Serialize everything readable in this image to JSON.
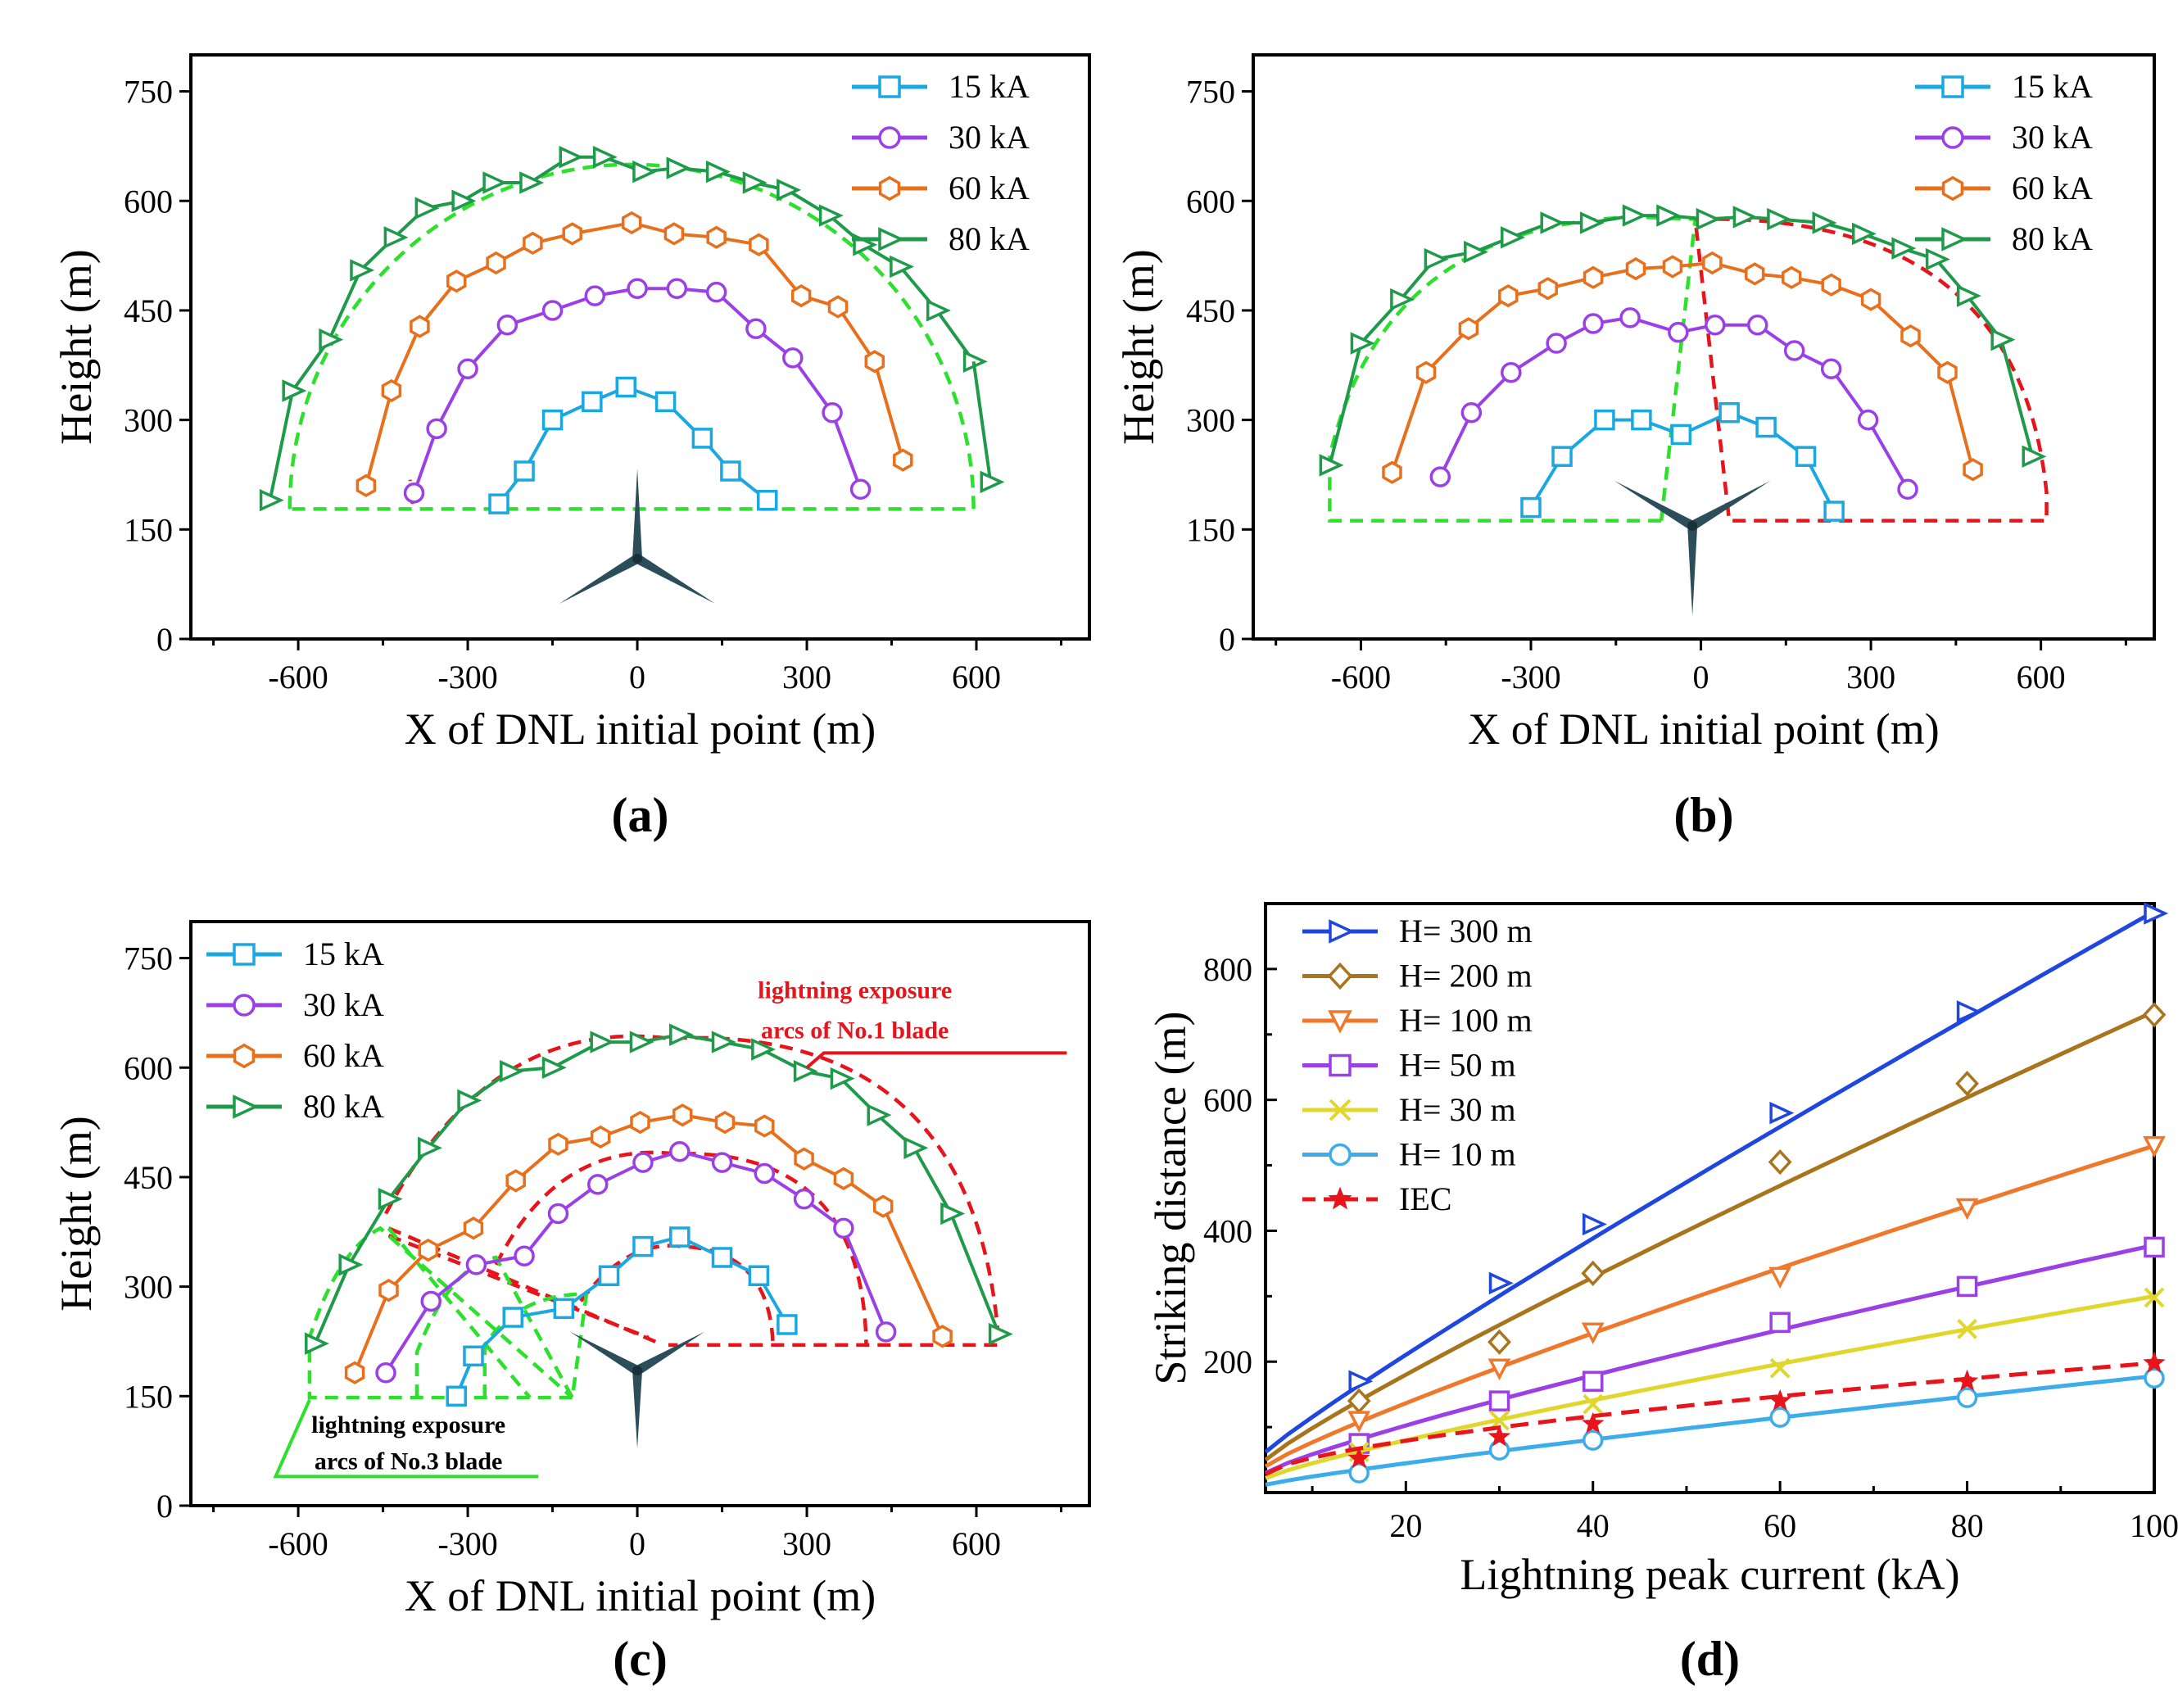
{
  "colors": {
    "c15": "#1ba7e0",
    "c30": "#9b40e6",
    "c60": "#e8701c",
    "c80": "#1f9a4a",
    "green_dash": "#2ce02c",
    "red_dash": "#e8141c",
    "turbine": "#2c4e5a",
    "h300": "#1f47e0",
    "h200": "#a8741c",
    "h100": "#f0782c",
    "h50": "#9b40e6",
    "h30": "#e0d62c",
    "h10": "#3cacea",
    "iec": "#e8141c"
  },
  "chart_data": [
    {
      "id": "a",
      "type": "line",
      "panel_label": "(a)",
      "xlabel": "X of DNL initial point (m)",
      "ylabel": "Height  (m)",
      "xlim": [
        -790,
        800
      ],
      "ylim": [
        0,
        800
      ],
      "xticks": [
        "-600",
        "-300",
        "0",
        "300",
        "600"
      ],
      "xtick_values": [
        -600,
        -300,
        0,
        300,
        600
      ],
      "yticks": [
        "0",
        "150",
        "300",
        "450",
        "600",
        "750"
      ],
      "ytick_values": [
        0,
        150,
        300,
        450,
        600,
        750
      ],
      "legend": "top-right",
      "series": [
        {
          "name": "15 kA",
          "color_key": "c15",
          "marker": "square",
          "x": [
            -245,
            -200,
            -150,
            -80,
            -20,
            50,
            115,
            165,
            230
          ],
          "y": [
            185,
            230,
            300,
            325,
            345,
            325,
            275,
            230,
            190
          ]
        },
        {
          "name": "30 kA",
          "color_key": "c30",
          "marker": "circle",
          "x": [
            -395,
            -355,
            -300,
            -230,
            -150,
            -75,
            0,
            70,
            140,
            210,
            275,
            345,
            395
          ],
          "y": [
            200,
            288,
            370,
            430,
            450,
            470,
            480,
            480,
            475,
            425,
            385,
            310,
            205
          ]
        },
        {
          "name": "60 kA",
          "color_key": "c60",
          "marker": "hexagon",
          "x": [
            -480,
            -435,
            -385,
            -320,
            -250,
            -185,
            -115,
            -10,
            65,
            140,
            215,
            290,
            355,
            420,
            470
          ],
          "y": [
            210,
            340,
            428,
            490,
            515,
            542,
            555,
            570,
            555,
            550,
            540,
            470,
            455,
            380,
            245
          ]
        },
        {
          "name": "80 kA",
          "color_key": "c80",
          "marker": "triangle-right",
          "x": [
            -650,
            -610,
            -545,
            -490,
            -430,
            -375,
            -310,
            -255,
            -190,
            -120,
            -60,
            10,
            70,
            140,
            205,
            265,
            340,
            400,
            465,
            530,
            595
          ],
          "y": [
            190,
            340,
            410,
            505,
            550,
            590,
            600,
            625,
            625,
            660,
            660,
            640,
            645,
            640,
            625,
            615,
            580,
            540,
            510,
            450,
            380
          ]
        }
      ],
      "extra_points": [
        {
          "series": "80 kA",
          "x": 625,
          "y": 215
        }
      ],
      "dashed_envelopes": [
        {
          "color_key": "green_dash",
          "path": "arc",
          "cx": -10,
          "base": 178,
          "rx": 605,
          "top": 650
        }
      ]
    },
    {
      "id": "b",
      "type": "line",
      "panel_label": "(b)",
      "xlabel": "X of DNL initial point  (m)",
      "ylabel": "Height  (m)",
      "xlim": [
        -790,
        800
      ],
      "ylim": [
        0,
        800
      ],
      "xticks": [
        "-600",
        "-300",
        "0",
        "300",
        "600"
      ],
      "xtick_values": [
        -600,
        -300,
        0,
        300,
        600
      ],
      "yticks": [
        "0",
        "150",
        "300",
        "450",
        "600",
        "750"
      ],
      "ytick_values": [
        0,
        150,
        300,
        450,
        600,
        750
      ],
      "legend": "top-right",
      "series": [
        {
          "name": "15 kA",
          "color_key": "c15",
          "marker": "square",
          "x": [
            -300,
            -245,
            -170,
            -105,
            -35,
            50,
            115,
            185,
            235
          ],
          "y": [
            180,
            250,
            300,
            300,
            280,
            310,
            290,
            250,
            175
          ]
        },
        {
          "name": "30 kA",
          "color_key": "c30",
          "marker": "circle",
          "x": [
            -460,
            -405,
            -335,
            -255,
            -190,
            -125,
            -40,
            25,
            100,
            165,
            230,
            295,
            365
          ],
          "y": [
            222,
            310,
            365,
            405,
            432,
            440,
            420,
            430,
            430,
            395,
            370,
            300,
            205
          ]
        },
        {
          "name": "60 kA",
          "color_key": "c60",
          "marker": "hexagon",
          "x": [
            -545,
            -485,
            -410,
            -340,
            -270,
            -190,
            -115,
            -50,
            20,
            95,
            160,
            230,
            300,
            370,
            435,
            480
          ],
          "y": [
            228,
            365,
            425,
            470,
            480,
            495,
            507,
            510,
            515,
            500,
            495,
            485,
            465,
            415,
            365,
            232
          ]
        },
        {
          "name": "80 kA",
          "color_key": "c80",
          "marker": "triangle-right",
          "x": [
            -655,
            -600,
            -530,
            -470,
            -400,
            -335,
            -265,
            -195,
            -120,
            -60,
            10,
            75,
            135,
            215,
            285,
            355,
            415,
            470,
            530,
            585
          ],
          "y": [
            238,
            405,
            465,
            520,
            530,
            550,
            570,
            570,
            580,
            580,
            575,
            578,
            575,
            570,
            555,
            535,
            520,
            470,
            410,
            250
          ]
        }
      ],
      "dashed_envelopes": [
        {
          "color_key": "green_dash",
          "path": "half-left",
          "cx": -110,
          "base": 162,
          "rx": 545,
          "top": 578
        },
        {
          "color_key": "red_dash",
          "path": "half-right",
          "cx": 60,
          "base": 162,
          "rx": 545,
          "top": 578
        }
      ]
    },
    {
      "id": "c",
      "type": "line",
      "panel_label": "(c)",
      "xlabel": "X of DNL initial point (m)",
      "ylabel": "Height  (m)",
      "xlim": [
        -790,
        800
      ],
      "ylim": [
        0,
        800
      ],
      "xticks": [
        "-600",
        "-300",
        "0",
        "300",
        "600"
      ],
      "xtick_values": [
        -600,
        -300,
        0,
        300,
        600
      ],
      "yticks": [
        "0",
        "150",
        "300",
        "450",
        "600",
        "750"
      ],
      "ytick_values": [
        0,
        150,
        300,
        450,
        600,
        750
      ],
      "legend": "top-left",
      "annotation_no1_line1": "lightning exposure",
      "annotation_no1_line2": "arcs of No.1 blade",
      "annotation_no3_line1": "lightning exposure",
      "annotation_no3_line2": "arcs of No.3 blade",
      "series": [
        {
          "name": "15 kA",
          "color_key": "c15",
          "marker": "square",
          "x": [
            -320,
            -290,
            -220,
            -130,
            -50,
            10,
            75,
            150,
            215,
            265
          ],
          "y": [
            150,
            205,
            258,
            270,
            315,
            355,
            368,
            340,
            315,
            248
          ]
        },
        {
          "name": "30 kA",
          "color_key": "c30",
          "marker": "circle",
          "x": [
            -445,
            -365,
            -285,
            -200,
            -140,
            -70,
            10,
            75,
            150,
            225,
            295,
            365,
            440
          ],
          "y": [
            182,
            280,
            330,
            342,
            400,
            440,
            470,
            485,
            470,
            455,
            420,
            380,
            238
          ]
        },
        {
          "name": "60 kA",
          "color_key": "c60",
          "marker": "hexagon",
          "x": [
            -500,
            -440,
            -370,
            -290,
            -215,
            -140,
            -65,
            5,
            80,
            155,
            225,
            295,
            365,
            435,
            540
          ],
          "y": [
            182,
            295,
            350,
            380,
            445,
            495,
            505,
            525,
            535,
            525,
            520,
            475,
            448,
            410,
            232
          ]
        },
        {
          "name": "80 kA",
          "color_key": "c80",
          "marker": "triangle-right",
          "x": [
            -570,
            -510,
            -440,
            -370,
            -300,
            -225,
            -150,
            -65,
            5,
            75,
            150,
            220,
            295,
            360,
            425,
            490,
            555,
            640
          ],
          "y": [
            222,
            330,
            420,
            490,
            555,
            595,
            600,
            635,
            635,
            645,
            635,
            625,
            595,
            585,
            535,
            490,
            400,
            235
          ]
        }
      ],
      "dashed_envelopes": [
        {
          "color_key": "red_dash",
          "path": "arc",
          "cx": 55,
          "base": 220,
          "rx": 590,
          "top": 640
        },
        {
          "color_key": "green_dash",
          "path": "arc3",
          "cx": -505,
          "base": 148,
          "rx": 60,
          "top": 380
        }
      ]
    },
    {
      "id": "d",
      "type": "line",
      "panel_label": "(d)",
      "xlabel": "Lightning peak current (kA)",
      "ylabel": "Striking distance (m)",
      "xlim": [
        5,
        100
      ],
      "ylim": [
        0,
        900
      ],
      "xticks": [
        "20",
        "40",
        "60",
        "80",
        "100"
      ],
      "xtick_values": [
        20,
        40,
        60,
        80,
        100
      ],
      "yticks": [
        "200",
        "400",
        "600",
        "800"
      ],
      "ytick_values": [
        200,
        400,
        600,
        800
      ],
      "legend": "top-left",
      "series": [
        {
          "name": "H= 300 m",
          "color_key": "h300",
          "marker": "triangle-right",
          "x": [
            15,
            30,
            40,
            60,
            80,
            100
          ],
          "y": [
            170,
            320,
            410,
            580,
            735,
            885
          ],
          "fit_x": [
            5,
            100
          ],
          "fit_y": [
            62,
            888
          ],
          "fit_exp": 0.93
        },
        {
          "name": "H= 200 m",
          "color_key": "h200",
          "marker": "diamond",
          "x": [
            15,
            30,
            40,
            60,
            80,
            100
          ],
          "y": [
            140,
            230,
            335,
            505,
            625,
            730
          ],
          "fit_x": [
            5,
            100
          ],
          "fit_y": [
            50,
            735
          ],
          "fit_exp": 0.9
        },
        {
          "name": "H= 100 m",
          "color_key": "h100",
          "marker": "triangle-down",
          "x": [
            15,
            30,
            40,
            60,
            80,
            100
          ],
          "y": [
            110,
            190,
            245,
            330,
            435,
            530
          ],
          "fit_x": [
            5,
            100
          ],
          "fit_y": [
            40,
            530
          ],
          "fit_exp": 0.88
        },
        {
          "name": "H= 50 m",
          "color_key": "h50",
          "marker": "square",
          "x": [
            15,
            30,
            40,
            60,
            80,
            100
          ],
          "y": [
            75,
            140,
            170,
            260,
            315,
            375
          ],
          "fit_x": [
            5,
            100
          ],
          "fit_y": [
            30,
            378
          ],
          "fit_exp": 0.85
        },
        {
          "name": "H= 30 m",
          "color_key": "h30",
          "marker": "x",
          "x": [
            15,
            30,
            40,
            60,
            80,
            100
          ],
          "y": [
            62,
            110,
            135,
            190,
            250,
            298
          ],
          "fit_x": [
            5,
            100
          ],
          "fit_y": [
            22,
            300
          ],
          "fit_exp": 0.85
        },
        {
          "name": "H= 10 m",
          "color_key": "h10",
          "marker": "circle",
          "x": [
            15,
            30,
            40,
            60,
            80,
            100
          ],
          "y": [
            30,
            65,
            80,
            115,
            145,
            175
          ],
          "fit_x": [
            5,
            100
          ],
          "fit_y": [
            12,
            178
          ],
          "fit_exp": 0.88
        },
        {
          "name": "IEC",
          "color_key": "iec",
          "marker": "star",
          "dashed": true,
          "x": [
            15,
            30,
            40,
            60,
            80,
            100
          ],
          "y": [
            52,
            85,
            105,
            140,
            170,
            198
          ],
          "fit_x": [
            5,
            100
          ],
          "fit_y": [
            28,
            198
          ],
          "fit_exp": 0.65
        }
      ]
    }
  ]
}
